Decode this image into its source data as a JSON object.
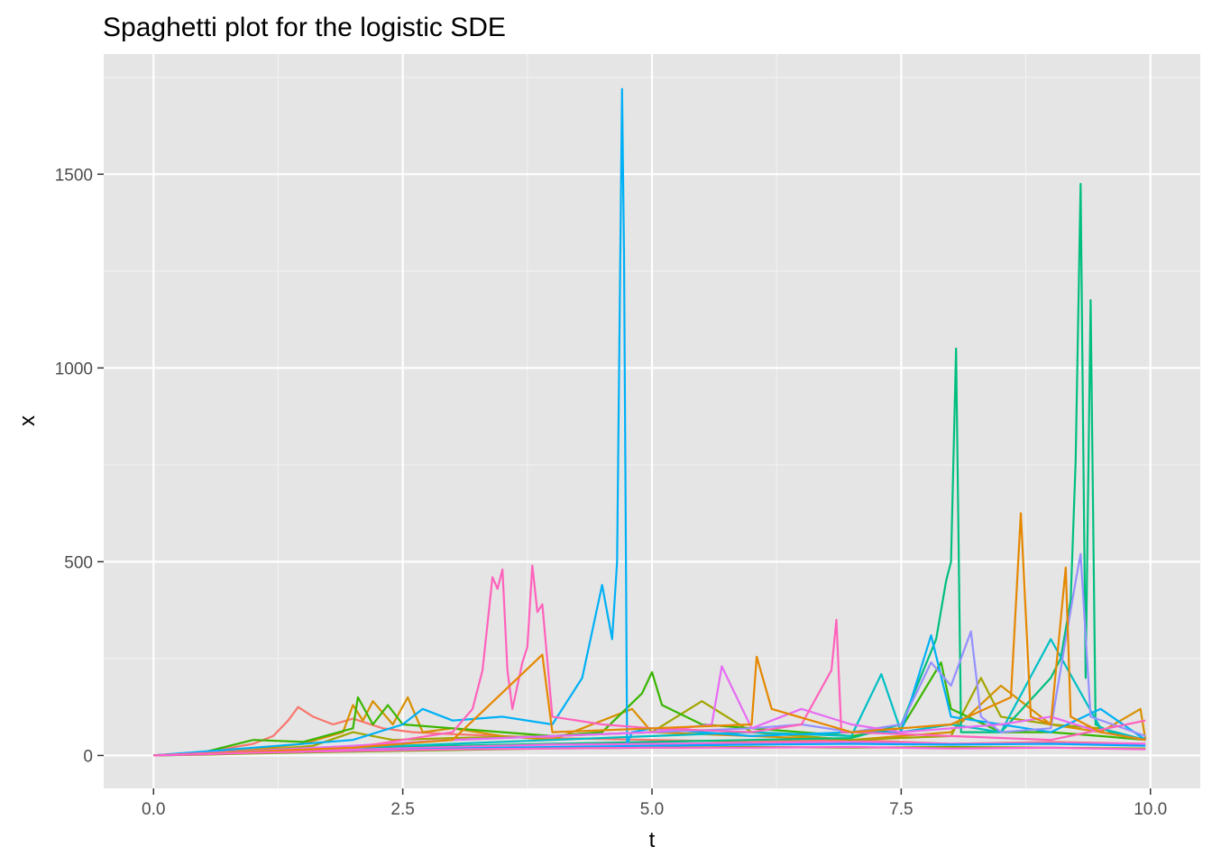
{
  "chart_data": {
    "type": "line",
    "title": "Spaghetti plot for the logistic SDE",
    "xlabel": "t",
    "ylabel": "x",
    "xlim": [
      -0.5,
      10.5
    ],
    "ylim": [
      -85,
      1810
    ],
    "x_ticks": [
      0.0,
      2.5,
      5.0,
      7.5,
      10.0
    ],
    "x_tick_labels": [
      "0.0",
      "2.5",
      "5.0",
      "7.5",
      "10.0"
    ],
    "y_ticks": [
      0,
      500,
      1000,
      1500
    ],
    "y_tick_labels": [
      "0",
      "500",
      "1000",
      "1500"
    ],
    "grid": true,
    "panel_background": "#e5e5e5",
    "legend": "none",
    "series": [
      {
        "color": "#f8766d",
        "x": [
          0,
          0.5,
          1.0,
          1.2,
          1.35,
          1.45,
          1.6,
          1.8,
          2.0,
          2.3,
          2.6,
          3.0,
          4.0,
          5.0,
          6.0,
          7.0,
          8.0,
          9.0,
          9.95
        ],
        "y": [
          0,
          8,
          30,
          50,
          90,
          125,
          100,
          80,
          95,
          70,
          60,
          55,
          45,
          40,
          35,
          40,
          30,
          35,
          30
        ]
      },
      {
        "color": "#d89000",
        "x": [
          0,
          0.5,
          1.0,
          1.5,
          1.9,
          2.0,
          2.1,
          2.2,
          2.4,
          2.55,
          2.7,
          3.0,
          3.5,
          4.0,
          4.8,
          5.0,
          6.0,
          7.0,
          8.0,
          8.5,
          9.0,
          9.5,
          9.9,
          9.95
        ],
        "y": [
          0,
          8,
          15,
          30,
          60,
          130,
          90,
          140,
          80,
          150,
          60,
          70,
          50,
          40,
          120,
          60,
          50,
          40,
          60,
          180,
          80,
          60,
          120,
          40
        ]
      },
      {
        "color": "#a3a500",
        "x": [
          0,
          0.5,
          1.0,
          1.6,
          2.0,
          2.2,
          2.4,
          3.0,
          4.0,
          5.0,
          5.5,
          6.0,
          7.0,
          8.0,
          8.3,
          8.5,
          9.0,
          9.5,
          9.95
        ],
        "y": [
          0,
          6,
          12,
          25,
          60,
          50,
          40,
          45,
          50,
          60,
          140,
          60,
          40,
          50,
          200,
          100,
          80,
          70,
          40
        ]
      },
      {
        "color": "#39b600",
        "x": [
          0,
          0.5,
          1.0,
          1.5,
          2.0,
          2.05,
          2.2,
          2.35,
          2.5,
          3.0,
          3.5,
          4.0,
          4.5,
          4.9,
          5.0,
          5.1,
          5.5,
          6.0,
          6.5,
          7.0,
          7.5,
          7.9,
          8.0,
          8.5,
          9.0,
          9.5,
          9.95
        ],
        "y": [
          0,
          8,
          40,
          35,
          70,
          150,
          80,
          130,
          80,
          70,
          60,
          50,
          60,
          160,
          215,
          130,
          80,
          70,
          60,
          50,
          70,
          240,
          120,
          60,
          60,
          50,
          40
        ]
      },
      {
        "color": "#00bf7d",
        "x": [
          0,
          0.5,
          1.0,
          2.0,
          3.0,
          4.0,
          5.0,
          6.0,
          7.0,
          7.5,
          7.85,
          7.95,
          8.0,
          8.05,
          8.1,
          8.5,
          9.0,
          9.1,
          9.2,
          9.25,
          9.3,
          9.35,
          9.4,
          9.45,
          9.6,
          9.95
        ],
        "y": [
          0,
          6,
          12,
          20,
          25,
          30,
          35,
          40,
          45,
          80,
          300,
          450,
          500,
          1050,
          60,
          60,
          200,
          250,
          400,
          760,
          1475,
          200,
          1175,
          80,
          60,
          40
        ]
      },
      {
        "color": "#00bfc4",
        "x": [
          0,
          0.5,
          1.0,
          2.0,
          3.0,
          4.0,
          5.0,
          6.0,
          7.0,
          7.3,
          7.5,
          8.0,
          8.5,
          9.0,
          9.5,
          9.95
        ],
        "y": [
          0,
          5,
          10,
          20,
          30,
          40,
          50,
          60,
          50,
          210,
          60,
          80,
          60,
          300,
          70,
          40
        ]
      },
      {
        "color": "#00b0f6",
        "x": [
          0,
          0.5,
          1.0,
          2.0,
          2.5,
          2.7,
          3.0,
          3.5,
          4.0,
          4.3,
          4.5,
          4.6,
          4.65,
          4.7,
          4.72,
          4.75,
          4.8,
          5.0,
          6.0,
          7.0,
          7.5,
          7.8,
          8.0,
          8.5,
          9.0,
          9.5,
          9.95
        ],
        "y": [
          0,
          10,
          20,
          40,
          80,
          120,
          90,
          100,
          80,
          200,
          440,
          300,
          500,
          1720,
          1290,
          30,
          60,
          70,
          50,
          60,
          60,
          310,
          100,
          80,
          60,
          120,
          40
        ]
      },
      {
        "color": "#9590ff",
        "x": [
          0,
          0.5,
          1.0,
          2.0,
          3.0,
          4.0,
          5.0,
          6.0,
          6.5,
          7.0,
          7.5,
          7.8,
          8.0,
          8.2,
          8.3,
          8.5,
          9.0,
          9.15,
          9.25,
          9.3,
          9.4,
          9.95
        ],
        "y": [
          0,
          5,
          12,
          25,
          40,
          50,
          60,
          70,
          80,
          60,
          80,
          240,
          180,
          320,
          100,
          60,
          70,
          300,
          450,
          520,
          100,
          50
        ]
      },
      {
        "color": "#e76bf3",
        "x": [
          0,
          0.5,
          1.0,
          2.0,
          3.0,
          4.0,
          5.0,
          5.6,
          5.7,
          6.0,
          6.5,
          7.0,
          7.5,
          8.0,
          8.5,
          9.0,
          9.5,
          9.95
        ],
        "y": [
          0,
          6,
          12,
          25,
          40,
          50,
          60,
          80,
          230,
          70,
          120,
          80,
          60,
          70,
          80,
          100,
          60,
          40
        ]
      },
      {
        "color": "#ff62bc",
        "x": [
          0,
          0.5,
          1.0,
          2.0,
          2.5,
          3.0,
          3.2,
          3.3,
          3.4,
          3.45,
          3.5,
          3.55,
          3.6,
          3.7,
          3.75,
          3.8,
          3.85,
          3.9,
          4.0,
          4.5,
          5.0,
          6.0,
          6.5,
          6.8,
          6.85,
          6.9,
          7.0,
          8.0,
          9.0,
          9.95
        ],
        "y": [
          0,
          5,
          10,
          20,
          40,
          60,
          120,
          220,
          460,
          430,
          480,
          220,
          120,
          240,
          280,
          490,
          370,
          390,
          100,
          80,
          70,
          60,
          80,
          220,
          350,
          60,
          60,
          50,
          40,
          90
        ]
      },
      {
        "color": "#f564e3",
        "x": [
          0,
          0.5,
          1.0,
          2.0,
          3.0,
          4.0,
          5.0,
          6.0,
          7.0,
          8.0,
          9.0,
          9.95
        ],
        "y": [
          0,
          4,
          8,
          15,
          22,
          28,
          30,
          32,
          35,
          30,
          32,
          30
        ]
      },
      {
        "color": "#00a9ff",
        "x": [
          0,
          0.5,
          1.0,
          2.0,
          3.0,
          4.0,
          5.0,
          6.0,
          7.0,
          8.0,
          9.0,
          9.95
        ],
        "y": [
          0,
          3,
          6,
          12,
          18,
          22,
          25,
          28,
          30,
          28,
          30,
          25
        ]
      },
      {
        "color": "#7cae00",
        "x": [
          0,
          0.5,
          1.0,
          2.0,
          3.0,
          4.0,
          5.0,
          6.0,
          7.0,
          8.0,
          9.0,
          9.95
        ],
        "y": [
          0,
          2,
          5,
          10,
          14,
          18,
          20,
          22,
          20,
          22,
          20,
          18
        ]
      },
      {
        "color": "#e58700",
        "x": [
          0,
          0.5,
          1.0,
          2.0,
          3.0,
          3.9,
          4.0,
          5.0,
          6.0,
          6.05,
          6.2,
          7.0,
          8.0,
          8.6,
          8.7,
          8.8,
          9.0,
          9.15,
          9.2,
          9.5,
          9.95
        ],
        "y": [
          0,
          4,
          10,
          20,
          40,
          260,
          60,
          70,
          80,
          255,
          120,
          60,
          80,
          150,
          625,
          100,
          80,
          485,
          100,
          60,
          40
        ]
      },
      {
        "color": "#fd61d1",
        "x": [
          0,
          0.5,
          1.0,
          2.0,
          3.0,
          4.0,
          5.0,
          6.0,
          7.0,
          8.0,
          9.0,
          9.95
        ],
        "y": [
          0,
          3,
          7,
          12,
          16,
          18,
          20,
          20,
          22,
          18,
          20,
          16
        ]
      }
    ]
  }
}
